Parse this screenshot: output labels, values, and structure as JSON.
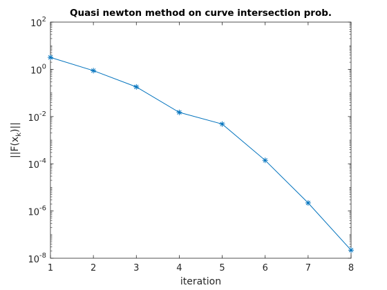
{
  "chart_data": {
    "type": "line",
    "title": "Quasi newton method on curve intersection prob.",
    "xlabel": "iteration",
    "ylabel": "||F(x_k)||",
    "ylabel_parts": {
      "main": "||F(x",
      "sub": "k",
      "tail": ")||"
    },
    "yscale": "log",
    "xlim": [
      1,
      8
    ],
    "ylim": [
      1e-08,
      100
    ],
    "grid": false,
    "x_ticks": [
      1,
      2,
      3,
      4,
      5,
      6,
      7,
      8
    ],
    "x_tick_labels": [
      "1",
      "2",
      "3",
      "4",
      "5",
      "6",
      "7",
      "8"
    ],
    "y_ticks": [
      {
        "value": 100,
        "base": "10",
        "exp": "2"
      },
      {
        "value": 1,
        "base": "10",
        "exp": "0"
      },
      {
        "value": 0.01,
        "base": "10",
        "exp": "-2"
      },
      {
        "value": 0.0001,
        "base": "10",
        "exp": "-4"
      },
      {
        "value": 1e-06,
        "base": "10",
        "exp": "-6"
      },
      {
        "value": 1e-08,
        "base": "10",
        "exp": "-8"
      }
    ],
    "series": [
      {
        "color": "#0072bd",
        "marker": "asterisk",
        "x": [
          1,
          2,
          3,
          4,
          5,
          6,
          7,
          8
        ],
        "y": [
          3.2,
          0.88,
          0.18,
          0.015,
          0.0048,
          0.00014,
          2.2e-06,
          2.2e-08
        ]
      }
    ]
  }
}
